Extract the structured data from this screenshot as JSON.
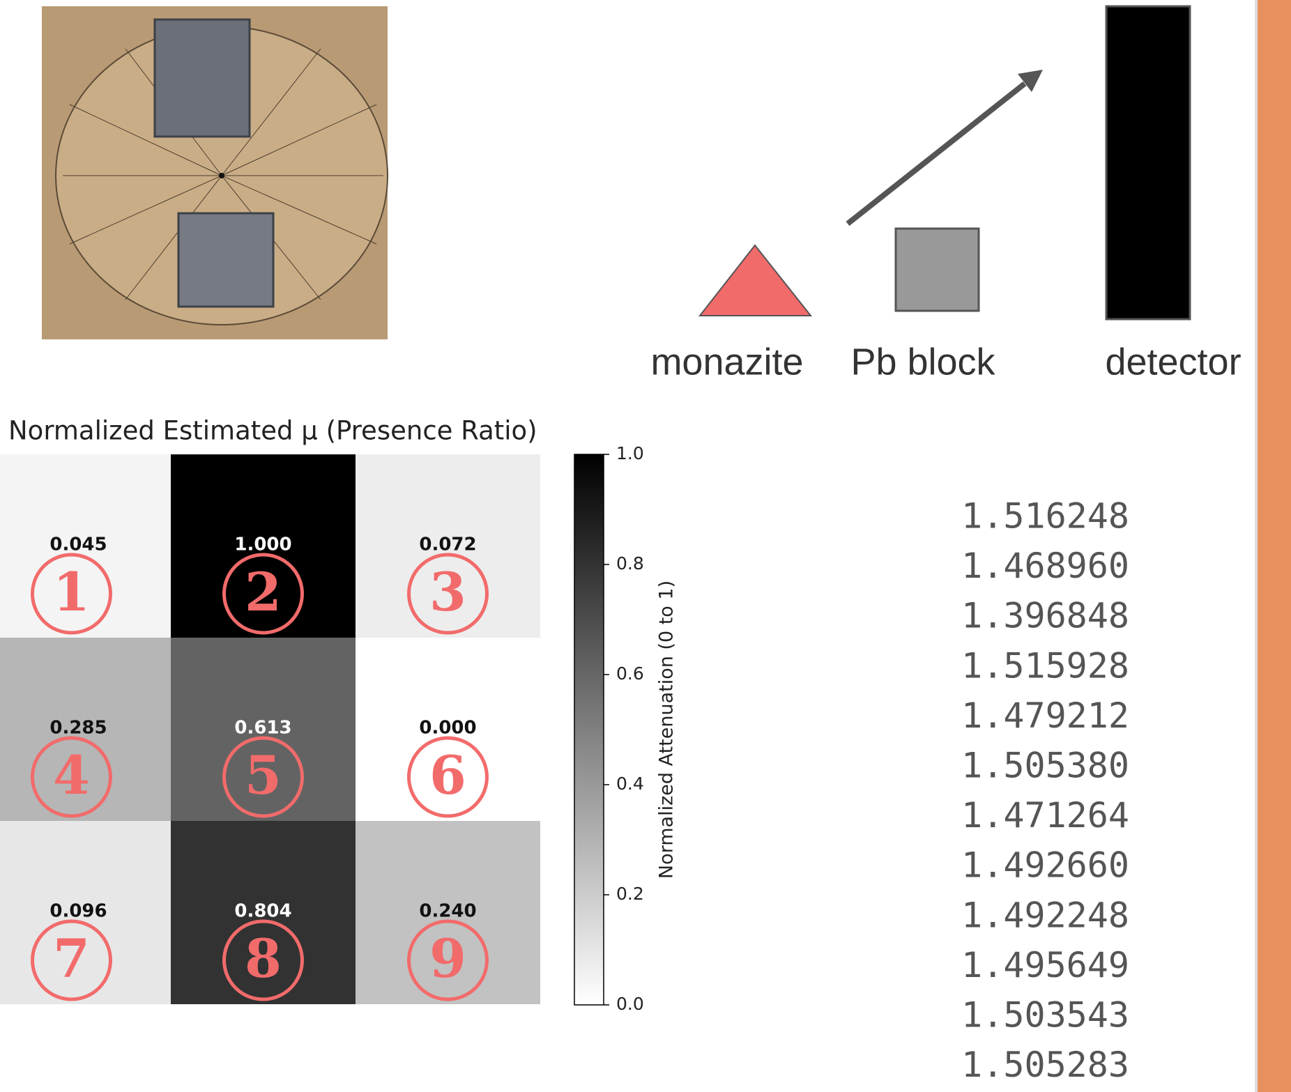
{
  "chart_data": {
    "type": "heatmap",
    "title": "Normalized Estimated μ (Presence Ratio)",
    "values": [
      [
        0.045,
        1.0,
        0.072
      ],
      [
        0.285,
        0.613,
        0.0
      ],
      [
        0.096,
        0.804,
        0.24
      ]
    ],
    "value_labels": [
      [
        "0.045",
        "1.000",
        "0.072"
      ],
      [
        "0.285",
        "0.613",
        "0.000"
      ],
      [
        "0.096",
        "0.804",
        "0.240"
      ]
    ],
    "cell_markers": [
      [
        "1",
        "2",
        "3"
      ],
      [
        "4",
        "5",
        "6"
      ],
      [
        "7",
        "8",
        "9"
      ]
    ],
    "marker_color": "#f26b6b",
    "colorbar_label": "Normalized Attenuation (0 to 1)",
    "clim": [
      0,
      1
    ],
    "cticks": [
      {
        "value": 0,
        "label": "0.0"
      },
      0.2,
      0.4,
      0.6,
      0.8,
      {
        "value": 1,
        "label": "1.0"
      }
    ]
  },
  "diagram": {
    "labels": [
      "monazite",
      "Pb block",
      "detector"
    ]
  },
  "readings": [
    "1.516248",
    "1.468960",
    "1.396848",
    "1.515928",
    "1.479212",
    "1.505380",
    "1.471264",
    "1.492660",
    "1.492248",
    "1.495649",
    "1.503543",
    "1.505283"
  ]
}
